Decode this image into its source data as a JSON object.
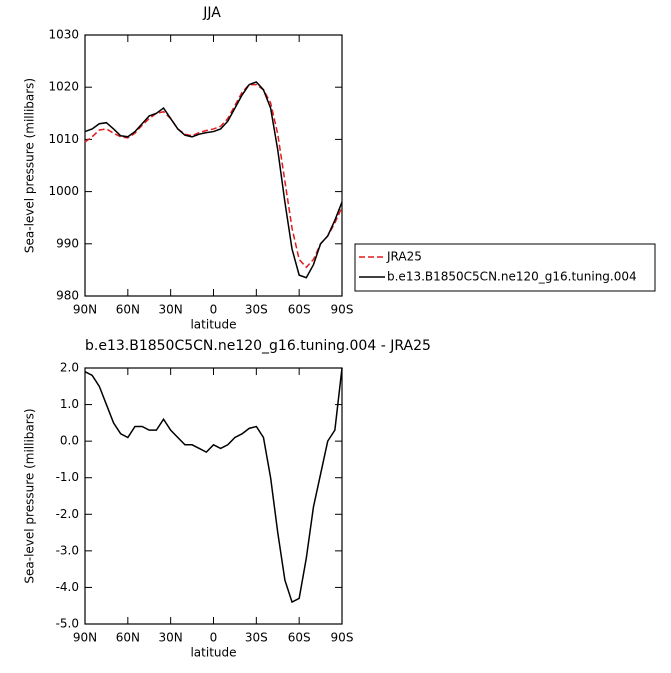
{
  "chart_data": [
    {
      "type": "line",
      "title": "JJA",
      "ylabel": "Sea-level pressure (millibars)",
      "xlabel": "latitude",
      "x": [
        90,
        85,
        80,
        75,
        70,
        65,
        60,
        55,
        50,
        45,
        40,
        35,
        30,
        25,
        20,
        15,
        10,
        5,
        0,
        -5,
        -10,
        -15,
        -20,
        -25,
        -30,
        -35,
        -40,
        -45,
        -50,
        -55,
        -60,
        -65,
        -70,
        -75,
        -80,
        -85,
        -90
      ],
      "xlim": [
        90,
        -90
      ],
      "xticks": [
        {
          "value": 90,
          "label": "90N"
        },
        {
          "value": 60,
          "label": "60N"
        },
        {
          "value": 30,
          "label": "30N"
        },
        0,
        {
          "value": -30,
          "label": "30S"
        },
        {
          "value": -60,
          "label": "60S"
        },
        {
          "value": -90,
          "label": "90S"
        }
      ],
      "ylim": [
        980,
        1030
      ],
      "yticks": [
        980,
        990,
        1000,
        1010,
        1020,
        1030
      ],
      "series": [
        {
          "name": "JRA25",
          "color": "#e41a1c",
          "dash": true,
          "values": [
            1009.5,
            1010.5,
            1011.8,
            1012,
            1011.2,
            1010.5,
            1010.3,
            1011.2,
            1012.7,
            1014,
            1015,
            1015.3,
            1014,
            1012,
            1011,
            1010.7,
            1011.3,
            1011.7,
            1012,
            1012.5,
            1014,
            1016.5,
            1019,
            1020.5,
            1020.5,
            1019.5,
            1017,
            1011,
            1002,
            993,
            987,
            985.5,
            987,
            990,
            991.5,
            994,
            997
          ]
        },
        {
          "name": "b.e13.B1850C5CN.ne120_g16.tuning.004",
          "color": "#000000",
          "dash": false,
          "values": [
            1011.5,
            1012,
            1013,
            1013.2,
            1012,
            1010.7,
            1010.5,
            1011.5,
            1013,
            1014.5,
            1015,
            1016,
            1014,
            1012,
            1010.8,
            1010.5,
            1011,
            1011.3,
            1011.5,
            1012,
            1013.5,
            1016,
            1018.5,
            1020.5,
            1021,
            1019.5,
            1016,
            1008,
            998,
            989,
            984,
            983.5,
            986,
            990,
            991.5,
            994.5,
            998
          ]
        }
      ]
    },
    {
      "type": "line",
      "title": "b.e13.B1850C5CN.ne120_g16.tuning.004 - JRA25",
      "ylabel": "Sea-level pressure (millibars)",
      "xlabel": "latitude",
      "x": [
        90,
        85,
        80,
        75,
        70,
        65,
        60,
        55,
        50,
        45,
        40,
        35,
        30,
        25,
        20,
        15,
        10,
        5,
        0,
        -5,
        -10,
        -15,
        -20,
        -25,
        -30,
        -35,
        -40,
        -45,
        -50,
        -55,
        -60,
        -65,
        -70,
        -75,
        -80,
        -85,
        -90
      ],
      "xlim": [
        90,
        -90
      ],
      "xticks": [
        {
          "value": 90,
          "label": "90N"
        },
        {
          "value": 60,
          "label": "60N"
        },
        {
          "value": 30,
          "label": "30N"
        },
        0,
        {
          "value": -30,
          "label": "30S"
        },
        {
          "value": -60,
          "label": "60S"
        },
        {
          "value": -90,
          "label": "90S"
        }
      ],
      "ylim": [
        -5,
        2
      ],
      "yticks": [
        {
          "value": -5,
          "label": "-5.0"
        },
        {
          "value": -4,
          "label": "-4.0"
        },
        {
          "value": -3,
          "label": "-3.0"
        },
        {
          "value": -2,
          "label": "-2.0"
        },
        {
          "value": -1,
          "label": "-1.0"
        },
        {
          "value": 0,
          "label": "0.0"
        },
        {
          "value": 1,
          "label": "1.0"
        },
        {
          "value": 2,
          "label": "2.0"
        }
      ],
      "series": [
        {
          "color": "#000000",
          "dash": false,
          "values": [
            1.9,
            1.8,
            1.5,
            1.0,
            0.5,
            0.2,
            0.1,
            0.4,
            0.4,
            0.3,
            0.3,
            0.6,
            0.3,
            0.1,
            -0.1,
            -0.1,
            -0.2,
            -0.3,
            -0.1,
            -0.2,
            -0.1,
            0.1,
            0.2,
            0.35,
            0.4,
            0.1,
            -1.0,
            -2.5,
            -3.8,
            -4.4,
            -4.3,
            -3.2,
            -1.8,
            -0.9,
            0.0,
            0.3,
            2.0
          ]
        }
      ]
    }
  ]
}
